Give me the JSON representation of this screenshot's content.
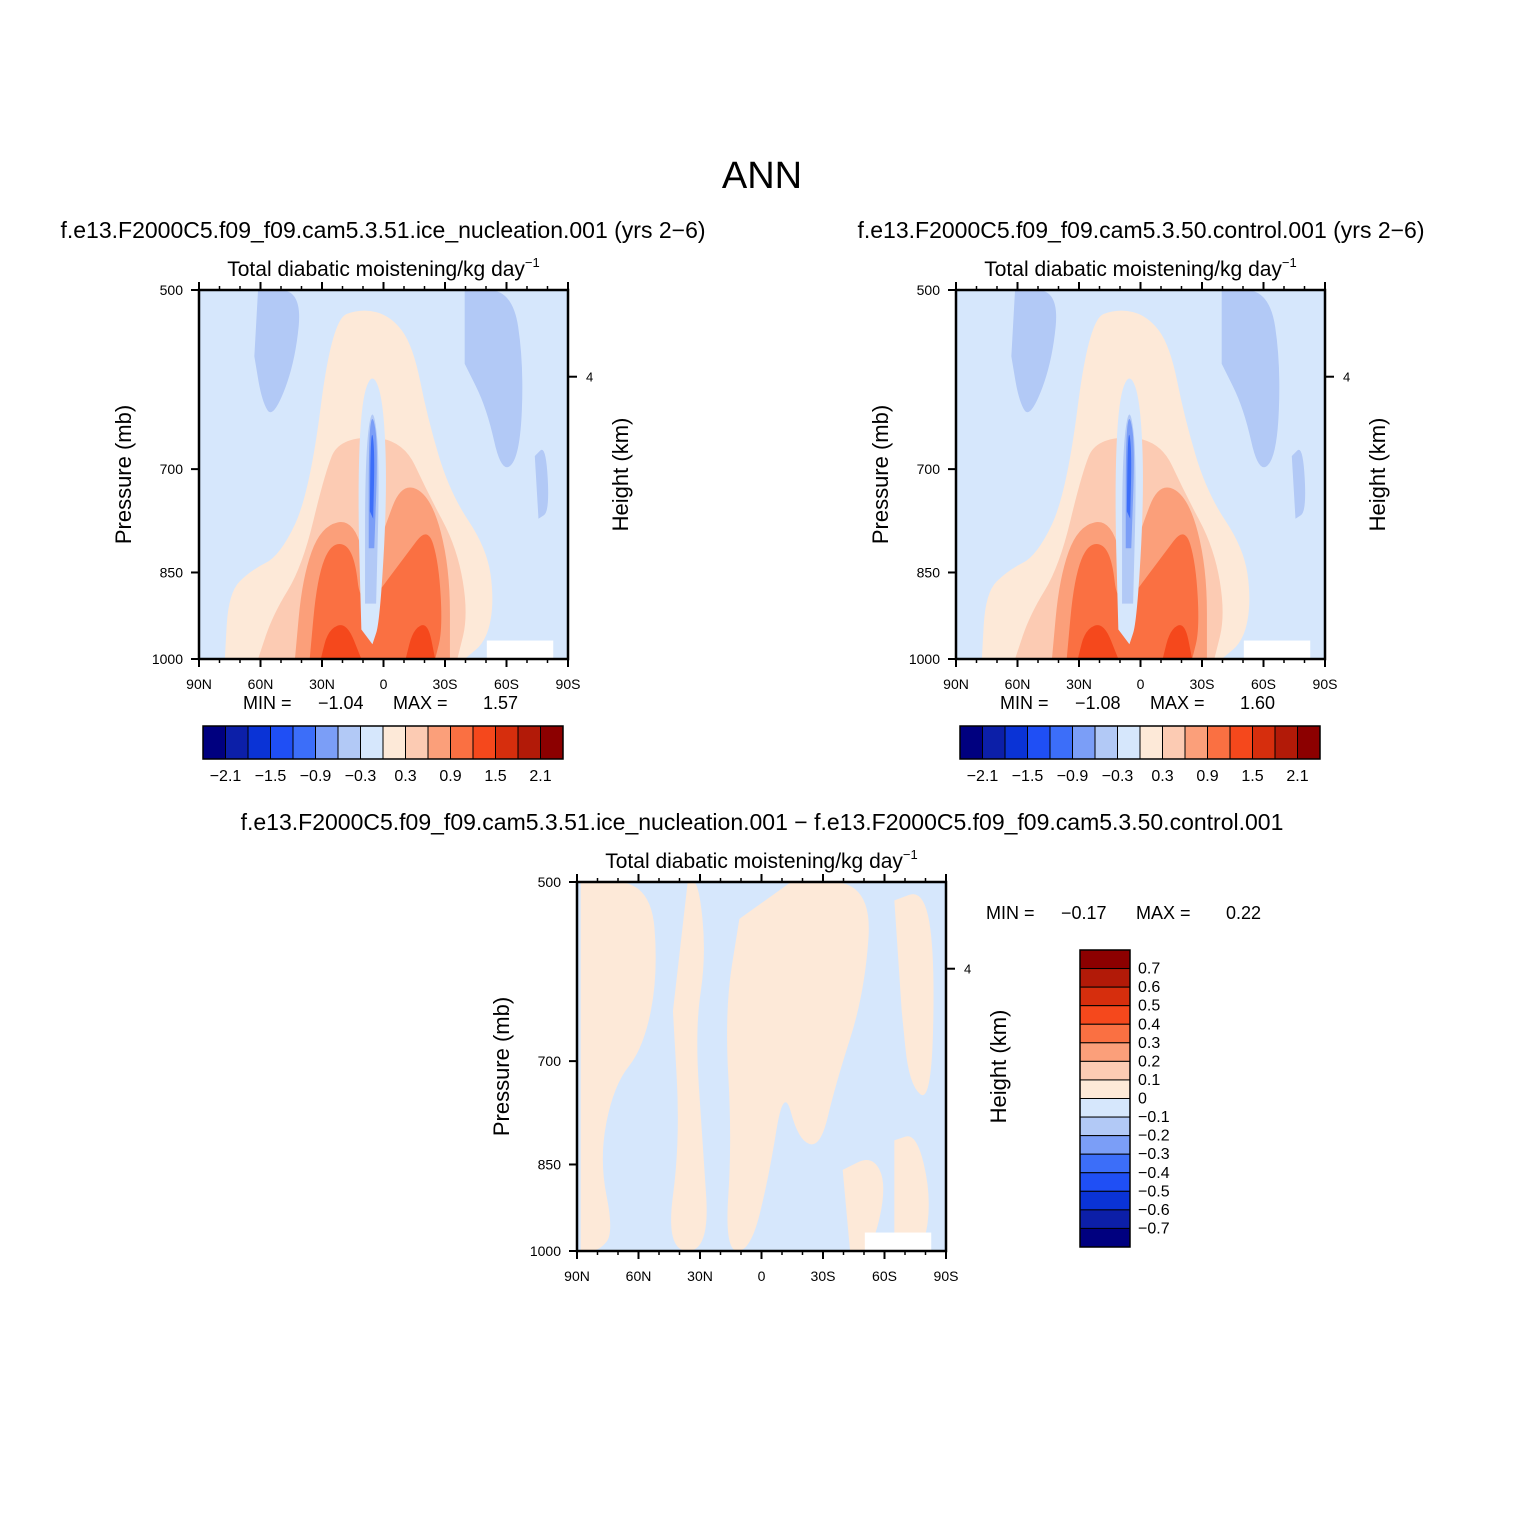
{
  "title": "ANN",
  "palette": {
    "colors": [
      "#00007f",
      "#0c1fa8",
      "#0a33d6",
      "#1f4ff5",
      "#3c6ef9",
      "#7b9ef7",
      "#b2c9f6",
      "#d6e7fc",
      "#fde9d8",
      "#fccbb3",
      "#fb9f7a",
      "#fa7042",
      "#f5481c",
      "#d62e0d",
      "#b21a08",
      "#8c0000"
    ],
    "background": "#ffffff",
    "missing": "#ffffff"
  },
  "panels": [
    {
      "id": "ice",
      "case_title": "f.e13.F2000C5.f09_f09.cam5.3.51.ice_nucleation.001  (yrs  2−6)",
      "subtitle": "Total  diabatic  moistening/kg  day",
      "subtitle_sup": "−1",
      "ylabel": "Pressure  (mb)",
      "ylabel_right": "Height  (km)",
      "min_label": "MIN  =",
      "min_value": "−1.04",
      "max_label": "MAX  =",
      "max_value": "1.57",
      "colorbar_labels": [
        "−2.1",
        "−1.5",
        "−0.9",
        "−0.3",
        "0.3",
        "0.9",
        "1.5",
        "2.1"
      ]
    },
    {
      "id": "ctl",
      "case_title": "f.e13.F2000C5.f09_f09.cam5.3.50.control.001  (yrs  2−6)",
      "subtitle": "Total  diabatic  moistening/kg  day",
      "subtitle_sup": "−1",
      "ylabel": "Pressure  (mb)",
      "ylabel_right": "Height  (km)",
      "min_label": "MIN  =",
      "min_value": "−1.08",
      "max_label": "MAX  =",
      "max_value": "1.60",
      "colorbar_labels": [
        "−2.1",
        "−1.5",
        "−0.9",
        "−0.3",
        "0.3",
        "0.9",
        "1.5",
        "2.1"
      ]
    },
    {
      "id": "diff",
      "case_title": "f.e13.F2000C5.f09_f09.cam5.3.51.ice_nucleation.001  −  f.e13.F2000C5.f09_f09.cam5.3.50.control.001",
      "subtitle": "Total  diabatic  moistening/kg  day",
      "subtitle_sup": "−1",
      "ylabel": "Pressure  (mb)",
      "ylabel_right": "Height  (km)",
      "min_label": "MIN  =",
      "min_value": "−0.17",
      "max_label": "MAX  =",
      "max_value": "0.22",
      "colorbar_labels": [
        "0.7",
        "0.6",
        "0.5",
        "0.4",
        "0.3",
        "0.2",
        "0.1",
        "0",
        "−0.1",
        "−0.2",
        "−0.3",
        "−0.4",
        "−0.5",
        "−0.6",
        "−0.7"
      ]
    }
  ],
  "chart_data": [
    {
      "type": "heatmap",
      "panel": "ice",
      "title": "Total diabatic moistening/kg day⁻¹",
      "x": [
        90,
        60,
        30,
        0,
        -30,
        -60,
        -90
      ],
      "x_tick_labels": [
        "90N",
        "60N",
        "30N",
        "0",
        "30S",
        "60S",
        "90S"
      ],
      "y_tick_labels": [
        "500",
        "700",
        "850",
        "1000"
      ],
      "y_right_tick_labels": [
        "4"
      ],
      "xlim": [
        90,
        -90
      ],
      "ylim": [
        1000,
        500
      ],
      "levels": [
        -2.1,
        -1.8,
        -1.5,
        -1.2,
        -0.9,
        -0.6,
        -0.3,
        0,
        0.3,
        0.6,
        0.9,
        1.2,
        1.5,
        1.8,
        2.1
      ],
      "min": -1.04,
      "max": 1.57
    },
    {
      "type": "heatmap",
      "panel": "ctl",
      "title": "Total diabatic moistening/kg day⁻¹",
      "x": [
        90,
        60,
        30,
        0,
        -30,
        -60,
        -90
      ],
      "x_tick_labels": [
        "90N",
        "60N",
        "30N",
        "0",
        "30S",
        "60S",
        "90S"
      ],
      "y_tick_labels": [
        "500",
        "700",
        "850",
        "1000"
      ],
      "y_right_tick_labels": [
        "4"
      ],
      "xlim": [
        90,
        -90
      ],
      "ylim": [
        1000,
        500
      ],
      "levels": [
        -2.1,
        -1.8,
        -1.5,
        -1.2,
        -0.9,
        -0.6,
        -0.3,
        0,
        0.3,
        0.6,
        0.9,
        1.2,
        1.5,
        1.8,
        2.1
      ],
      "min": -1.08,
      "max": 1.6
    },
    {
      "type": "heatmap",
      "panel": "diff",
      "title": "Total diabatic moistening/kg day⁻¹",
      "x": [
        90,
        60,
        30,
        0,
        -30,
        -60,
        -90
      ],
      "x_tick_labels": [
        "90N",
        "60N",
        "30N",
        "0",
        "30S",
        "60S",
        "90S"
      ],
      "y_tick_labels": [
        "500",
        "700",
        "850",
        "1000"
      ],
      "y_right_tick_labels": [
        "4"
      ],
      "xlim": [
        90,
        -90
      ],
      "ylim": [
        1000,
        500
      ],
      "levels": [
        -0.7,
        -0.6,
        -0.5,
        -0.4,
        -0.3,
        -0.2,
        -0.1,
        0,
        0.1,
        0.2,
        0.3,
        0.4,
        0.5,
        0.6,
        0.7
      ],
      "min": -0.17,
      "max": 0.22
    }
  ]
}
